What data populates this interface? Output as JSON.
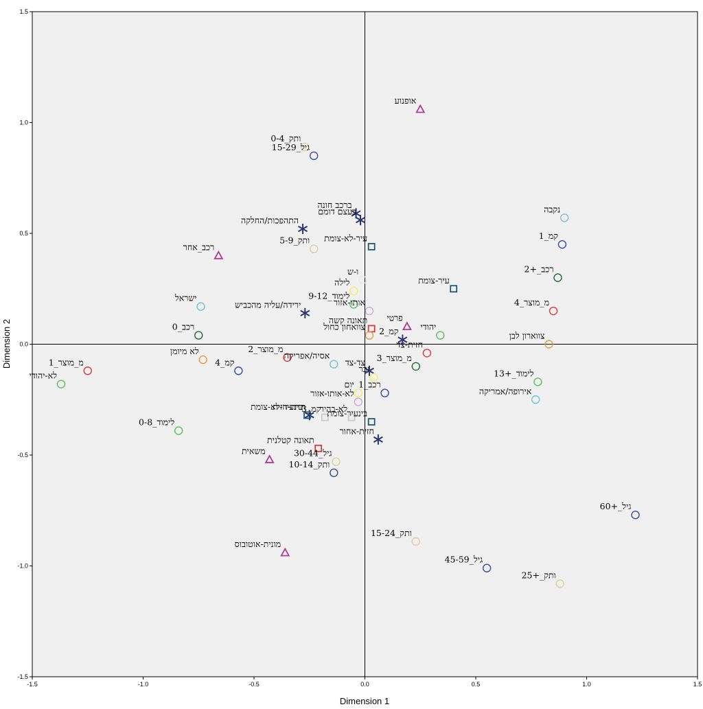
{
  "chart_data": {
    "type": "scatter",
    "title": "",
    "xlabel": "Dimension 1",
    "ylabel": "Dimension 2",
    "xlim": [
      -1.5,
      1.5
    ],
    "ylim": [
      -1.5,
      1.5
    ],
    "xticks": [
      "-1.5",
      "-1.0",
      "-0.5",
      "0.0",
      "0.5",
      "1.0",
      "1.5"
    ],
    "yticks": [
      "-1.5",
      "-1.0",
      "-0.5",
      "0.0",
      "0.5",
      "1.0",
      "1.5"
    ],
    "grid": false,
    "reference_lines": {
      "x": 0,
      "y": 0
    },
    "points": [
      {
        "label": "אופנוע",
        "x": 0.25,
        "y": 1.06,
        "marker": "triangle",
        "color": "#b03a8c"
      },
      {
        "label": "ותק_0-4",
        "x": -0.27,
        "y": 0.89,
        "marker": "circle",
        "color": "#d8d0a0"
      },
      {
        "label": "גיל_15-29",
        "x": -0.23,
        "y": 0.85,
        "marker": "circle",
        "color": "#3b4a9c"
      },
      {
        "label": "ברכב חונה",
        "x": -0.04,
        "y": 0.59,
        "marker": "star",
        "color": "#2b3470"
      },
      {
        "label": "בעצם דומם",
        "x": -0.02,
        "y": 0.56,
        "marker": "star",
        "color": "#2b3470"
      },
      {
        "label": "התהפכות/החלקה",
        "x": -0.28,
        "y": 0.52,
        "marker": "star",
        "color": "#2b3470"
      },
      {
        "label": "נקבה",
        "x": 0.9,
        "y": 0.57,
        "marker": "circle",
        "color": "#8db6e0"
      },
      {
        "label": "קמ_1",
        "x": 0.89,
        "y": 0.45,
        "marker": "circle",
        "color": "#3b4a9c"
      },
      {
        "label": "עיר-לא-צומת",
        "x": 0.03,
        "y": 0.44,
        "marker": "square",
        "color": "#1f5a6e"
      },
      {
        "label": "ותק_5-9",
        "x": -0.23,
        "y": 0.43,
        "marker": "circle",
        "color": "#d8d0a0"
      },
      {
        "label": "רכב_אחר",
        "x": -0.66,
        "y": 0.4,
        "marker": "triangle",
        "color": "#b03a8c"
      },
      {
        "label": "רכב_+2",
        "x": 0.87,
        "y": 0.3,
        "marker": "circle",
        "color": "#1e6b3a"
      },
      {
        "label": "ו-ש",
        "x": -0.01,
        "y": 0.29,
        "marker": "circle",
        "color": "#e8e8e8"
      },
      {
        "label": "עיר-צומת",
        "x": 0.4,
        "y": 0.25,
        "marker": "square",
        "color": "#1f5a6e"
      },
      {
        "label": "לילה",
        "x": -0.05,
        "y": 0.24,
        "marker": "circle",
        "color": "#f0f060"
      },
      {
        "label": "לימוד_9-12",
        "x": -0.05,
        "y": 0.18,
        "marker": "circle",
        "color": "#5cbf5c"
      },
      {
        "label": "ישראל",
        "x": -0.74,
        "y": 0.17,
        "marker": "circle",
        "color": "#6cc6d0"
      },
      {
        "label": "ירידה/עליה מהכביש",
        "x": -0.27,
        "y": 0.14,
        "marker": "star",
        "color": "#2b3470"
      },
      {
        "label": "אותו-אזור",
        "x": 0.02,
        "y": 0.15,
        "marker": "circle",
        "color": "#c9a8e0"
      },
      {
        "label": "מ_מוצר_4",
        "x": 0.85,
        "y": 0.15,
        "marker": "circle",
        "color": "#d83a3a"
      },
      {
        "label": "פרטי",
        "x": 0.19,
        "y": 0.08,
        "marker": "triangle",
        "color": "#b03a8c"
      },
      {
        "label": "יהודי",
        "x": 0.34,
        "y": 0.04,
        "marker": "circle",
        "color": "#5cbf5c"
      },
      {
        "label": "תאונה קשה",
        "x": 0.03,
        "y": 0.07,
        "marker": "square",
        "color": "#d83a3a"
      },
      {
        "label": "צוואחון כחול",
        "x": 0.02,
        "y": 0.04,
        "marker": "circle",
        "color": "#e0a040"
      },
      {
        "label": "רכב_0",
        "x": -0.75,
        "y": 0.04,
        "marker": "circle",
        "color": "#1e6b3a"
      },
      {
        "label": "קמ_2",
        "x": 0.17,
        "y": 0.02,
        "marker": "star",
        "color": "#2b3470"
      },
      {
        "label": "צווארון לבן",
        "x": 0.83,
        "y": 0.0,
        "marker": "circle",
        "color": "#e0a040"
      },
      {
        "label": "לא מיומן",
        "x": -0.73,
        "y": -0.07,
        "marker": "circle",
        "color": "#e0a040"
      },
      {
        "label": "מ_מוצר_2",
        "x": -0.35,
        "y": -0.06,
        "marker": "circle",
        "color": "#d83a3a"
      },
      {
        "label": "חזית-צד",
        "x": 0.28,
        "y": -0.04,
        "marker": "circle",
        "color": "#d83a3a"
      },
      {
        "label": "אסיה/אפריקה",
        "x": -0.14,
        "y": -0.09,
        "marker": "circle",
        "color": "#6cc6d0"
      },
      {
        "label": "מ_מוצר_1",
        "x": -1.25,
        "y": -0.12,
        "marker": "circle",
        "color": "#d83a3a"
      },
      {
        "label": "קמ_4",
        "x": -0.57,
        "y": -0.12,
        "marker": "circle",
        "color": "#3b4a9c"
      },
      {
        "label": "מ_מוצר_3",
        "x": 0.23,
        "y": -0.1,
        "marker": "circle",
        "color": "#1e6b3a"
      },
      {
        "label": "צד-צד",
        "x": 0.02,
        "y": -0.12,
        "marker": "star",
        "color": "#2b3470"
      },
      {
        "label": "זכר",
        "x": 0.04,
        "y": -0.15,
        "marker": "circle",
        "color": "#f0f060"
      },
      {
        "label": "לימוד_+13",
        "x": 0.78,
        "y": -0.17,
        "marker": "circle",
        "color": "#5cbf5c"
      },
      {
        "label": "רכב_1",
        "x": 0.09,
        "y": -0.22,
        "marker": "circle",
        "color": "#3b4a9c"
      },
      {
        "label": "לא-יהודי",
        "x": -1.37,
        "y": -0.18,
        "marker": "circle",
        "color": "#5cbf5c"
      },
      {
        "label": "יום",
        "x": -0.03,
        "y": -0.22,
        "marker": "circle",
        "color": "#f0f060"
      },
      {
        "label": "לא-אותו-אזור",
        "x": -0.03,
        "y": -0.26,
        "marker": "circle",
        "color": "#c9a8e0"
      },
      {
        "label": "אירופה/אמריקה",
        "x": 0.77,
        "y": -0.25,
        "marker": "circle",
        "color": "#6cc6d0"
      },
      {
        "label": "חזית-חזית",
        "x": -0.25,
        "y": -0.32,
        "marker": "star",
        "color": "#2b3470"
      },
      {
        "label": "קמ_3",
        "x": -0.18,
        "y": -0.33,
        "marker": "square",
        "color": "#c8c8c8"
      },
      {
        "label": "בינעיר-צומת",
        "x": 0.03,
        "y": -0.35,
        "marker": "square",
        "color": "#1f5a6e"
      },
      {
        "label": "לימוד_0-8",
        "x": -0.84,
        "y": -0.39,
        "marker": "circle",
        "color": "#5cbf5c"
      },
      {
        "label": "בינעיר-לא-צומת",
        "x": -0.26,
        "y": -0.32,
        "marker": "square",
        "color": "#1f5a6e"
      },
      {
        "label": "לא-בהיר",
        "x": -0.06,
        "y": -0.33,
        "marker": "square",
        "color": "#c8c8c8"
      },
      {
        "label": "חזית-אחור",
        "x": 0.06,
        "y": -0.43,
        "marker": "star",
        "color": "#2b3470"
      },
      {
        "label": "תאונה קטלנית",
        "x": -0.21,
        "y": -0.47,
        "marker": "square",
        "color": "#d83a3a"
      },
      {
        "label": "גיל_30-44",
        "x": -0.13,
        "y": -0.53,
        "marker": "circle",
        "color": "#d8d0a0"
      },
      {
        "label": "משאית",
        "x": -0.43,
        "y": -0.52,
        "marker": "triangle",
        "color": "#b03a8c"
      },
      {
        "label": "ותק_10-14",
        "x": -0.14,
        "y": -0.58,
        "marker": "circle",
        "color": "#3b4a9c"
      },
      {
        "label": "גיל_+60",
        "x": 1.22,
        "y": -0.77,
        "marker": "circle",
        "color": "#3b4a9c"
      },
      {
        "label": "ותק_15-24",
        "x": 0.23,
        "y": -0.89,
        "marker": "circle",
        "color": "#d8d0a0"
      },
      {
        "label": "מונית-אוטובוס",
        "x": -0.36,
        "y": -0.94,
        "marker": "triangle",
        "color": "#b03a8c"
      },
      {
        "label": "גיל_45-59",
        "x": 0.55,
        "y": -1.01,
        "marker": "circle",
        "color": "#3b4a9c"
      },
      {
        "label": "ותק_+25",
        "x": 0.88,
        "y": -1.08,
        "marker": "circle",
        "color": "#d8d0a0"
      }
    ]
  }
}
